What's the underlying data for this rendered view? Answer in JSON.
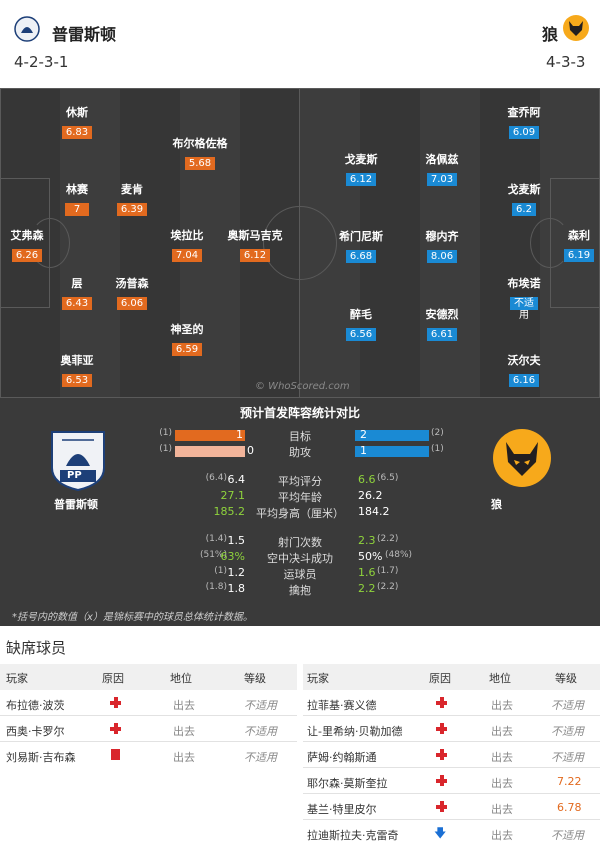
{
  "header": {
    "home_name": "普雷斯顿",
    "home_formation": "4-2-3-1",
    "away_name": "狼",
    "away_formation": "4-3-3"
  },
  "pitch": {
    "watermark": "© WhoScored.com",
    "home_players": [
      {
        "name": "艾弗森",
        "rating": "6.26"
      },
      {
        "name": "休斯",
        "rating": "6.83"
      },
      {
        "name": "林赛",
        "rating": "7"
      },
      {
        "name": "层",
        "rating": "6.43"
      },
      {
        "name": "奥菲亚",
        "rating": "6.53"
      },
      {
        "name": "麦肯",
        "rating": "6.39"
      },
      {
        "name": "汤普森",
        "rating": "6.06"
      },
      {
        "name": "布尔格佐格",
        "rating": "5.68"
      },
      {
        "name": "埃拉比",
        "rating": "7.04"
      },
      {
        "name": "神圣的",
        "rating": "6.59"
      },
      {
        "name": "奥斯马吉克",
        "rating": "6.12"
      }
    ],
    "away_players": [
      {
        "name": "查乔阿",
        "rating": "6.09"
      },
      {
        "name": "戈麦斯",
        "rating": "6.2"
      },
      {
        "name": "森利",
        "rating": "6.19"
      },
      {
        "name": "布埃诺",
        "rating": "不适",
        "sub": "用"
      },
      {
        "name": "沃尔夫",
        "rating": "6.16"
      },
      {
        "name": "洛佩兹",
        "rating": "7.03"
      },
      {
        "name": "穆内齐",
        "rating": "8.06"
      },
      {
        "name": "安德烈",
        "rating": "6.61"
      },
      {
        "name": "戈麦斯",
        "rating": "6.12"
      },
      {
        "name": "希门尼斯",
        "rating": "6.68"
      },
      {
        "name": "醉毛",
        "rating": "6.56"
      }
    ]
  },
  "stats": {
    "title": "预计首发阵容统计对比",
    "home_label": "普雷斯顿",
    "away_label": "狼",
    "home_crest_text": "PP",
    "footnote": "*括号内的数值（x）是锦标赛中的球员总体统计数据。",
    "rows": [
      {
        "label": "目标",
        "home": "1",
        "home_p": "(1)",
        "away": "2",
        "away_p": "(2)"
      },
      {
        "label": "助攻",
        "home": "0",
        "home_p": "(1)",
        "away": "1",
        "away_p": "(1)"
      },
      {
        "label": "平均评分",
        "home": "6.4",
        "home_p": "(6.4)",
        "away": "6.6",
        "away_p": "(6.5)"
      },
      {
        "label": "平均年龄",
        "home": "27.1",
        "home_p": "",
        "away": "26.2",
        "away_p": ""
      },
      {
        "label": "平均身高（厘米）",
        "home": "185.2",
        "home_p": "",
        "away": "184.2",
        "away_p": ""
      },
      {
        "label": "射门次数",
        "home": "1.5",
        "home_p": "(1.4)",
        "away": "2.3",
        "away_p": "(2.2)"
      },
      {
        "label": "空中决斗成功",
        "home": "63%",
        "home_p": "(51%)",
        "away": "50%",
        "away_p": "(48%)"
      },
      {
        "label": "运球员",
        "home": "1.2",
        "home_p": "(1)",
        "away": "1.6",
        "away_p": "(1.7)"
      },
      {
        "label": "擒抱",
        "home": "1.8",
        "home_p": "(1.8)",
        "away": "2.2",
        "away_p": "(2.2)"
      }
    ]
  },
  "absent": {
    "title": "缺席球员",
    "headers": {
      "player": "玩家",
      "reason": "原因",
      "position": "地位",
      "grade": "等级"
    },
    "home": [
      {
        "name": "布拉德·波茨",
        "reason": "injury",
        "position": "出去",
        "grade": "不适用"
      },
      {
        "name": "西奥·卡罗尔",
        "reason": "injury",
        "position": "出去",
        "grade": "不适用"
      },
      {
        "name": "刘易斯·吉布森",
        "reason": "card",
        "position": "出去",
        "grade": "不适用"
      }
    ],
    "away": [
      {
        "name": "拉菲基·赛义德",
        "reason": "injury",
        "position": "出去",
        "grade": "不适用"
      },
      {
        "name": "让-里希纳·贝勒加德",
        "reason": "injury",
        "position": "出去",
        "grade": "不适用"
      },
      {
        "name": "萨姆·约翰斯通",
        "reason": "injury",
        "position": "出去",
        "grade": "不适用"
      },
      {
        "name": "耶尔森·莫斯奎拉",
        "reason": "injury",
        "position": "出去",
        "grade": "7.22"
      },
      {
        "name": "基兰·特里皮尔",
        "reason": "injury",
        "position": "出去",
        "grade": "6.78"
      },
      {
        "name": "拉迪斯拉夫·克雷奇",
        "reason": "loan",
        "position": "出去",
        "grade": "不适用"
      }
    ]
  },
  "colors": {
    "home": "#e26a1f",
    "away": "#1a8ad4",
    "home_light": "#f2b49a",
    "better": "#8fd43c"
  }
}
